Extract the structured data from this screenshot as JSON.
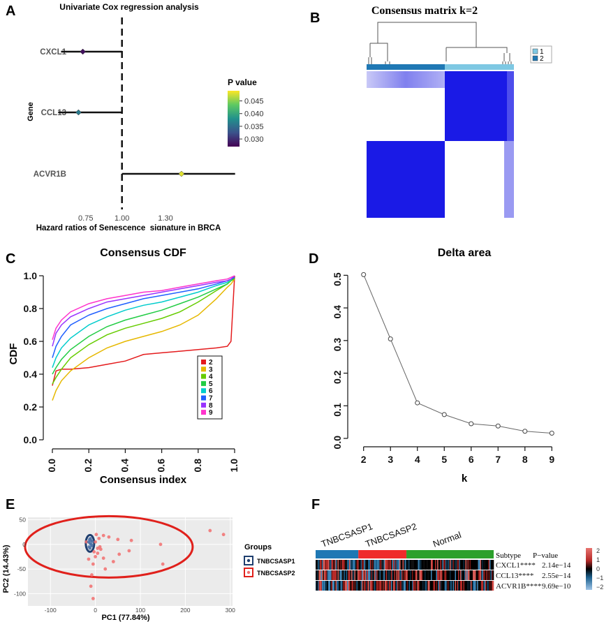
{
  "panel_letters": {
    "a": "A",
    "b": "B",
    "c": "C",
    "d": "D",
    "e": "E",
    "f": "F"
  },
  "colors": {
    "line_black": "#111111",
    "heat_blue": "#1a1ae6",
    "group1_blue": "#1f78b4",
    "group1_light": "#7ec8e3",
    "ellipse_blue": "#1f3f6f",
    "ellipse_red": "#e0201b",
    "pca_point": "#f26f6f",
    "subtype_green": "#2ca02c",
    "subtype_red": "#ef2b2b"
  },
  "chart_data": [
    {
      "id": "A",
      "type": "forest",
      "title": "Univariate Cox regression analysis",
      "xlabel": "Hazard ratios of Senescence_signature in BRCA",
      "ylabel": "Gene",
      "ref_line": 1.0,
      "x_ticks": [
        0.75,
        1.0,
        1.3
      ],
      "x_tick_labels": [
        "0.75",
        "1.00",
        "1.30"
      ],
      "xlim": [
        0.52,
        1.82
      ],
      "genes": [
        "CXCL1",
        "CCL13",
        "ACVR1B"
      ],
      "hr": [
        0.73,
        0.7,
        1.41
      ],
      "ci_low": [
        0.58,
        0.56,
        1.0
      ],
      "ci_high": [
        1.0,
        1.0,
        1.78
      ],
      "pvalue": [
        0.028,
        0.036,
        0.048
      ],
      "legend_title": "P value",
      "legend_ticks": [
        "0.045",
        "0.040",
        "0.035",
        "0.030"
      ],
      "legend_tick_values": [
        0.045,
        0.04,
        0.035,
        0.03
      ],
      "legend_range": [
        0.027,
        0.049
      ]
    },
    {
      "id": "B",
      "type": "heatmap",
      "title": "Consensus matrix k=2",
      "legend": [
        "1",
        "2"
      ],
      "cluster_fraction": 0.42
    },
    {
      "id": "C",
      "type": "line",
      "title": "Consensus CDF",
      "xlabel": "Consensus index",
      "ylabel": "CDF",
      "xlim": [
        0,
        1
      ],
      "ylim": [
        0,
        1
      ],
      "x_tick_labels": [
        "0.0",
        "0.2",
        "0.4",
        "0.6",
        "0.8",
        "1.0"
      ],
      "y_tick_labels": [
        "0.0",
        "0.2",
        "0.4",
        "0.6",
        "0.8",
        "1.0"
      ],
      "x": [
        0,
        0.02,
        0.05,
        0.1,
        0.2,
        0.3,
        0.4,
        0.5,
        0.6,
        0.7,
        0.8,
        0.9,
        0.96,
        0.98,
        1.0
      ],
      "series": [
        {
          "name": "2",
          "color": "#e41a1c",
          "values": [
            0.33,
            0.42,
            0.43,
            0.43,
            0.44,
            0.46,
            0.48,
            0.52,
            0.53,
            0.54,
            0.55,
            0.56,
            0.57,
            0.6,
            1.0
          ]
        },
        {
          "name": "3",
          "color": "#e6b800",
          "values": [
            0.24,
            0.3,
            0.36,
            0.42,
            0.5,
            0.56,
            0.6,
            0.63,
            0.66,
            0.7,
            0.76,
            0.86,
            0.93,
            0.95,
            0.98
          ]
        },
        {
          "name": "4",
          "color": "#66cc00",
          "values": [
            0.34,
            0.38,
            0.43,
            0.5,
            0.58,
            0.64,
            0.68,
            0.71,
            0.74,
            0.78,
            0.84,
            0.91,
            0.95,
            0.97,
            0.98
          ]
        },
        {
          "name": "5",
          "color": "#22cc44",
          "values": [
            0.4,
            0.44,
            0.49,
            0.55,
            0.63,
            0.69,
            0.73,
            0.76,
            0.79,
            0.83,
            0.87,
            0.92,
            0.95,
            0.97,
            0.99
          ]
        },
        {
          "name": "6",
          "color": "#00cccc",
          "values": [
            0.44,
            0.5,
            0.56,
            0.62,
            0.7,
            0.75,
            0.79,
            0.82,
            0.84,
            0.87,
            0.9,
            0.94,
            0.96,
            0.98,
            0.99
          ]
        },
        {
          "name": "7",
          "color": "#1f5fff",
          "values": [
            0.5,
            0.57,
            0.63,
            0.7,
            0.76,
            0.8,
            0.83,
            0.86,
            0.88,
            0.9,
            0.92,
            0.95,
            0.97,
            0.98,
            0.99
          ]
        },
        {
          "name": "8",
          "color": "#9933ff",
          "values": [
            0.57,
            0.65,
            0.7,
            0.75,
            0.8,
            0.84,
            0.86,
            0.88,
            0.9,
            0.92,
            0.94,
            0.96,
            0.97,
            0.98,
            1.0
          ]
        },
        {
          "name": "9",
          "color": "#ff33cc",
          "values": [
            0.61,
            0.68,
            0.73,
            0.78,
            0.83,
            0.86,
            0.88,
            0.9,
            0.91,
            0.93,
            0.95,
            0.97,
            0.98,
            0.99,
            1.0
          ]
        }
      ]
    },
    {
      "id": "D",
      "type": "line",
      "title": "Delta area",
      "xlabel": "k",
      "ylabel": "",
      "xlim": [
        1.8,
        9.2
      ],
      "ylim": [
        0,
        0.52
      ],
      "x_ticks": [
        2,
        3,
        4,
        5,
        6,
        7,
        8,
        9
      ],
      "x_tick_labels": [
        "2",
        "3",
        "4",
        "5",
        "6",
        "7",
        "8",
        "9"
      ],
      "y_ticks": [
        0,
        0.1,
        0.2,
        0.3,
        0.4,
        0.5
      ],
      "y_tick_labels": [
        "0.0",
        "0.1",
        "0.2",
        "0.3",
        "0.4",
        "0.5"
      ],
      "x": [
        2,
        3,
        4,
        5,
        6,
        7,
        8,
        9
      ],
      "values": [
        0.502,
        0.305,
        0.109,
        0.073,
        0.045,
        0.038,
        0.022,
        0.016
      ]
    },
    {
      "id": "E",
      "type": "scatter",
      "xlabel": "PC1 (77.84%)",
      "ylabel": "PC2 (14.43%)",
      "xlim": [
        -150,
        305
      ],
      "ylim": [
        -125,
        55
      ],
      "x_ticks": [
        -100,
        0,
        100,
        200,
        300
      ],
      "x_tick_labels": [
        "-100",
        "0",
        "100",
        "200",
        "300"
      ],
      "y_ticks": [
        50,
        0,
        -50,
        -100
      ],
      "y_tick_labels": [
        "50",
        "0",
        "-50",
        "-100"
      ],
      "legend_title": "Groups",
      "groups": [
        "TNBCSASP1",
        "TNBCSASP2"
      ],
      "series": [
        {
          "name": "TNBCSASP1",
          "points": [
            [
              -15,
              5
            ],
            [
              -12,
              2
            ],
            [
              -10,
              8
            ],
            [
              -8,
              -3
            ],
            [
              -14,
              -5
            ],
            [
              -11,
              12
            ],
            [
              -9,
              0
            ],
            [
              -13,
              10
            ],
            [
              -7,
              6
            ],
            [
              -12,
              -8
            ]
          ]
        },
        {
          "name": "TNBCSASP2",
          "points": [
            [
              255,
              28
            ],
            [
              285,
              20
            ],
            [
              150,
              -40
            ],
            [
              145,
              0
            ],
            [
              80,
              8
            ],
            [
              75,
              -13
            ],
            [
              50,
              10
            ],
            [
              53,
              -20
            ],
            [
              30,
              15
            ],
            [
              18,
              18
            ],
            [
              18,
              -28
            ],
            [
              10,
              -5
            ],
            [
              5,
              -18
            ],
            [
              0,
              -25
            ],
            [
              -5,
              -40
            ],
            [
              -8,
              -62
            ],
            [
              -10,
              -85
            ],
            [
              -5,
              -110
            ],
            [
              -15,
              -30
            ],
            [
              8,
              12
            ],
            [
              -20,
              5
            ],
            [
              0,
              5
            ],
            [
              12,
              -10
            ],
            [
              22,
              -50
            ],
            [
              40,
              -35
            ],
            [
              5,
              -8
            ],
            [
              -3,
              -15
            ],
            [
              2,
              20
            ]
          ]
        }
      ]
    },
    {
      "id": "F",
      "type": "heatmap",
      "subtypes": [
        "TNBCSASP1",
        "TNBCSASP2",
        "Normal"
      ],
      "subtype_fractions": [
        0.24,
        0.27,
        0.49
      ],
      "header_subtype": "Subtype",
      "header_pvalue": "P−value",
      "rows": [
        {
          "label": "CXCL1****",
          "pvalue": "2.14e−14"
        },
        {
          "label": "CCL13****",
          "pvalue": "2.55e−14"
        },
        {
          "label": "ACVR1B****",
          "pvalue": "9.69e−10"
        }
      ],
      "colorbar_ticks": [
        "2",
        "1",
        "0",
        "−1",
        "−2"
      ],
      "colorbar_values": [
        2,
        1,
        0,
        -1,
        -2
      ]
    }
  ]
}
